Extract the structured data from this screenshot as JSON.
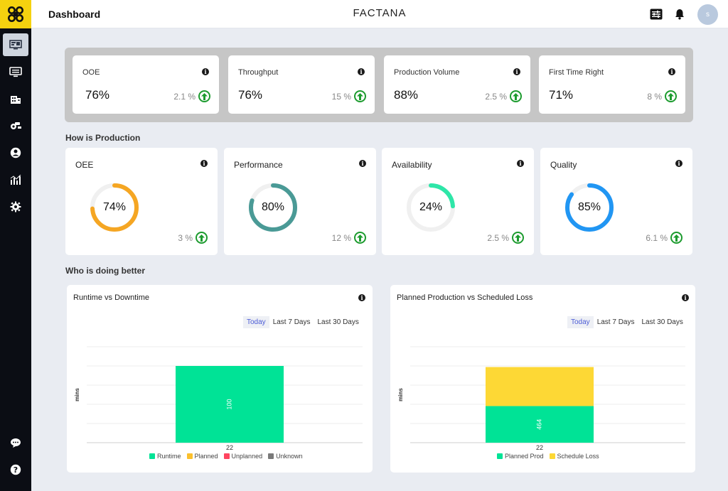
{
  "header": {
    "title": "Dashboard",
    "brand": "FACTANA",
    "avatar_initial": "s"
  },
  "sidebar": {
    "items": [
      {
        "name": "dashboard-icon"
      },
      {
        "name": "monitor-icon"
      },
      {
        "name": "building-icon"
      },
      {
        "name": "machine-icon"
      },
      {
        "name": "user-icon"
      },
      {
        "name": "analytics-icon"
      },
      {
        "name": "gear-icon"
      }
    ],
    "bottom": [
      {
        "name": "chat-icon"
      },
      {
        "name": "help-icon"
      }
    ]
  },
  "kpis": [
    {
      "title": "OOE",
      "value": "76%",
      "delta": "2.1 %"
    },
    {
      "title": "Throughput",
      "value": "76%",
      "delta": "15 %"
    },
    {
      "title": "Production Volume",
      "value": "88%",
      "delta": "2.5 %"
    },
    {
      "title": "First Time Right",
      "value": "71%",
      "delta": "8 %"
    }
  ],
  "sections": {
    "production": "How is Production",
    "better": "Who is doing better"
  },
  "gauges": [
    {
      "title": "OEE",
      "value": "74%",
      "percent": 74,
      "color": "#f5a623",
      "delta": "3 %"
    },
    {
      "title": "Performance",
      "value": "80%",
      "percent": 80,
      "color": "#4a9a96",
      "delta": "12 %"
    },
    {
      "title": "Availability",
      "value": "24%",
      "percent": 24,
      "color": "#2ee6a8",
      "delta": "2.5 %"
    },
    {
      "title": "Quality",
      "value": "85%",
      "percent": 85,
      "color": "#2196f3",
      "delta": "6.1 %"
    }
  ],
  "range_tabs": [
    "Today",
    "Last 7 Days",
    "Last 30 Days"
  ],
  "chart_data": [
    {
      "type": "bar",
      "title": "Runtime vs Downtime",
      "ylabel": "mins",
      "categories": [
        "22"
      ],
      "series": [
        {
          "name": "Runtime",
          "color": "#00e396",
          "values": [
            100
          ]
        },
        {
          "name": "Planned",
          "color": "#fbc02d",
          "values": [
            0
          ]
        },
        {
          "name": "Unplanned",
          "color": "#ff4560",
          "values": [
            0
          ]
        },
        {
          "name": "Unknown",
          "color": "#7a7a7a",
          "values": [
            0
          ]
        }
      ],
      "data_labels": [
        "100"
      ]
    },
    {
      "type": "bar",
      "title": "Planned Production vs Scheduled Loss",
      "ylabel": "mins",
      "categories": [
        "22"
      ],
      "series": [
        {
          "name": "Planned Prod",
          "color": "#00e396",
          "values": [
            464
          ]
        },
        {
          "name": "Schedule Loss",
          "color": "#fdd835",
          "values": [
            494
          ]
        }
      ],
      "data_labels": [
        "464"
      ]
    }
  ]
}
